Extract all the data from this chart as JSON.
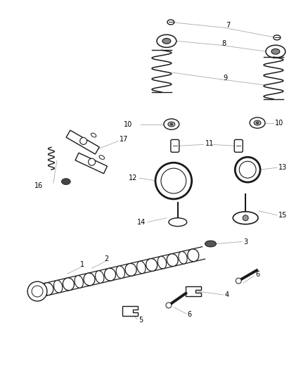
{
  "bg_color": "#ffffff",
  "line_color": "#aaaaaa",
  "text_color": "#000000",
  "part_color": "#1a1a1a",
  "label_fs": 7.0,
  "lw_part": 1.0,
  "lw_line": 0.6
}
